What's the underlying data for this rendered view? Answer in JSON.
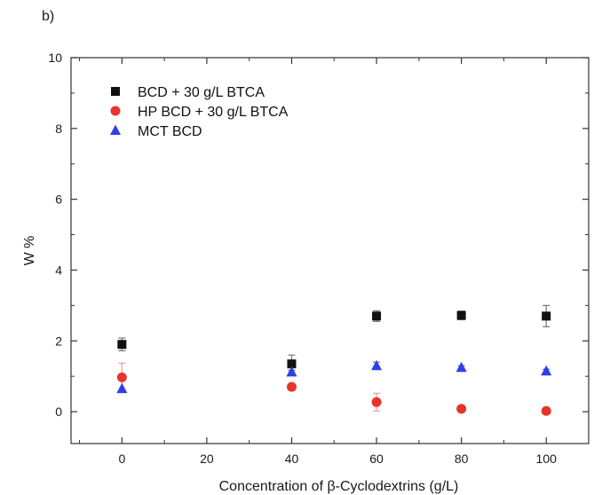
{
  "panel_label": "b)",
  "chart_data": {
    "type": "scatter",
    "title": "",
    "xlabel": "Concentration of β-Cyclodextrins (g/L)",
    "ylabel": "W %",
    "xlim": [
      -12,
      110
    ],
    "ylim": [
      -0.9,
      10
    ],
    "x_ticks": [
      0,
      20,
      40,
      60,
      80,
      100
    ],
    "y_ticks": [
      0,
      2,
      4,
      6,
      8,
      10
    ],
    "grid": false,
    "legend_position": "top-left",
    "series": [
      {
        "name": "BCD + 30 g/L BTCA",
        "marker": "square",
        "color": "#111111",
        "x": [
          0,
          40,
          60,
          80,
          100
        ],
        "y": [
          1.9,
          1.35,
          2.7,
          2.72,
          2.7
        ],
        "err": [
          0.18,
          0.25,
          0.15,
          0.12,
          0.3
        ]
      },
      {
        "name": "HP BCD + 30 g/L BTCA",
        "marker": "circle",
        "color": "#e8332a",
        "x": [
          0,
          40,
          60,
          80,
          100
        ],
        "y": [
          0.97,
          0.7,
          0.27,
          0.08,
          0.02
        ],
        "err": [
          0.4,
          0.1,
          0.25,
          0.08,
          0.05
        ]
      },
      {
        "name": "MCT BCD",
        "marker": "triangle",
        "color": "#2f3fe8",
        "x": [
          0,
          40,
          60,
          80,
          100
        ],
        "y": [
          0.65,
          1.12,
          1.3,
          1.25,
          1.15
        ],
        "err": [
          0.0,
          0.05,
          0.1,
          0.05,
          0.05
        ]
      }
    ]
  }
}
